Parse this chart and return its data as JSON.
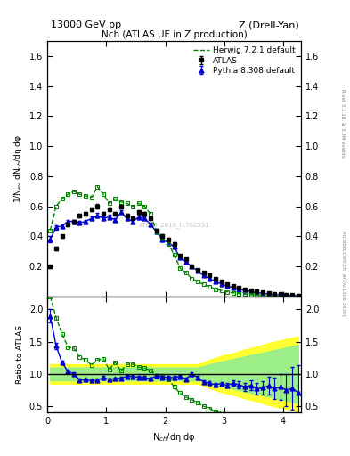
{
  "title_top_left": "13000 GeV pp",
  "title_top_right": "Z (Drell-Yan)",
  "plot_title": "Nch (ATLAS UE in Z production)",
  "ylabel_main": "1/N$_{ev}$ dN$_{ch}$/dη dφ",
  "ylabel_ratio": "Ratio to ATLAS",
  "xlabel": "N$_{ch}$/dη dφ",
  "right_label_top": "Rivet 3.1.10, ≥ 3.3M events",
  "right_label_bottom": "mcplots.cern.ch [arXiv:1306.3436]",
  "watermark": "ATLAS_2019_I1762531",
  "atlas_x": [
    0.05,
    0.15,
    0.25,
    0.35,
    0.45,
    0.55,
    0.65,
    0.75,
    0.85,
    0.95,
    1.05,
    1.15,
    1.25,
    1.35,
    1.45,
    1.55,
    1.65,
    1.75,
    1.85,
    1.95,
    2.05,
    2.15,
    2.25,
    2.35,
    2.45,
    2.55,
    2.65,
    2.75,
    2.85,
    2.95,
    3.05,
    3.15,
    3.25,
    3.35,
    3.45,
    3.55,
    3.65,
    3.75,
    3.85,
    3.95,
    4.05,
    4.15,
    4.25
  ],
  "atlas_y": [
    0.2,
    0.32,
    0.4,
    0.48,
    0.5,
    0.54,
    0.55,
    0.58,
    0.6,
    0.55,
    0.58,
    0.55,
    0.6,
    0.54,
    0.52,
    0.56,
    0.55,
    0.52,
    0.44,
    0.4,
    0.38,
    0.35,
    0.27,
    0.25,
    0.2,
    0.18,
    0.16,
    0.14,
    0.12,
    0.1,
    0.085,
    0.07,
    0.06,
    0.05,
    0.04,
    0.035,
    0.028,
    0.022,
    0.018,
    0.015,
    0.012,
    0.009,
    0.007
  ],
  "atlas_yerr": [
    0.01,
    0.01,
    0.01,
    0.01,
    0.01,
    0.01,
    0.01,
    0.01,
    0.015,
    0.012,
    0.012,
    0.012,
    0.012,
    0.012,
    0.012,
    0.012,
    0.012,
    0.012,
    0.012,
    0.012,
    0.012,
    0.01,
    0.008,
    0.007,
    0.006,
    0.005,
    0.004,
    0.004,
    0.003,
    0.003,
    0.002,
    0.002,
    0.0015,
    0.0012,
    0.001,
    0.0009,
    0.0007,
    0.0006,
    0.0005,
    0.0004,
    0.0003,
    0.00025,
    0.0002
  ],
  "herwig_x": [
    0.05,
    0.15,
    0.25,
    0.35,
    0.45,
    0.55,
    0.65,
    0.75,
    0.85,
    0.95,
    1.05,
    1.15,
    1.25,
    1.35,
    1.45,
    1.55,
    1.65,
    1.75,
    1.85,
    1.95,
    2.05,
    2.15,
    2.25,
    2.35,
    2.45,
    2.55,
    2.65,
    2.75,
    2.85,
    2.95,
    3.05,
    3.15,
    3.25,
    3.35,
    3.45,
    3.55,
    3.65,
    3.75,
    3.85,
    3.95,
    4.05,
    4.15,
    4.25
  ],
  "herwig_y": [
    0.44,
    0.6,
    0.65,
    0.68,
    0.7,
    0.68,
    0.67,
    0.66,
    0.73,
    0.68,
    0.62,
    0.65,
    0.63,
    0.62,
    0.6,
    0.62,
    0.6,
    0.55,
    0.43,
    0.39,
    0.35,
    0.28,
    0.19,
    0.16,
    0.12,
    0.1,
    0.08,
    0.065,
    0.05,
    0.04,
    0.032,
    0.025,
    0.02,
    0.015,
    0.012,
    0.009,
    0.007,
    0.005,
    0.004,
    0.003,
    0.002,
    0.0015,
    0.001
  ],
  "pythia_x": [
    0.05,
    0.15,
    0.25,
    0.35,
    0.45,
    0.55,
    0.65,
    0.75,
    0.85,
    0.95,
    1.05,
    1.15,
    1.25,
    1.35,
    1.45,
    1.55,
    1.65,
    1.75,
    1.85,
    1.95,
    2.05,
    2.15,
    2.25,
    2.35,
    2.45,
    2.55,
    2.65,
    2.75,
    2.85,
    2.95,
    3.05,
    3.15,
    3.25,
    3.35,
    3.45,
    3.55,
    3.65,
    3.75,
    3.85,
    3.95,
    4.05,
    4.15,
    4.25
  ],
  "pythia_y": [
    0.38,
    0.46,
    0.47,
    0.5,
    0.5,
    0.49,
    0.5,
    0.52,
    0.54,
    0.52,
    0.53,
    0.51,
    0.56,
    0.52,
    0.5,
    0.53,
    0.52,
    0.48,
    0.43,
    0.38,
    0.36,
    0.33,
    0.26,
    0.23,
    0.2,
    0.17,
    0.14,
    0.12,
    0.1,
    0.085,
    0.07,
    0.06,
    0.05,
    0.04,
    0.033,
    0.027,
    0.022,
    0.018,
    0.014,
    0.012,
    0.009,
    0.007,
    0.005
  ],
  "pythia_yerr": [
    0.02,
    0.015,
    0.012,
    0.012,
    0.012,
    0.012,
    0.012,
    0.012,
    0.015,
    0.012,
    0.012,
    0.012,
    0.012,
    0.012,
    0.012,
    0.012,
    0.012,
    0.012,
    0.012,
    0.01,
    0.01,
    0.009,
    0.007,
    0.006,
    0.006,
    0.005,
    0.004,
    0.004,
    0.003,
    0.003,
    0.003,
    0.003,
    0.003,
    0.003,
    0.003,
    0.003,
    0.003,
    0.003,
    0.003,
    0.003,
    0.003,
    0.003,
    0.003
  ],
  "atlas_color": "#000000",
  "herwig_color": "#008800",
  "pythia_color": "#0000cc",
  "band_yellow_lo": [
    0.85,
    0.85,
    0.85,
    0.85,
    0.85,
    0.85,
    0.85,
    0.85,
    0.85,
    0.85,
    0.85,
    0.85,
    0.85,
    0.85,
    0.85,
    0.85,
    0.85,
    0.85,
    0.85,
    0.85,
    0.85,
    0.85,
    0.85,
    0.85,
    0.85,
    0.85,
    0.82,
    0.78,
    0.75,
    0.72,
    0.7,
    0.68,
    0.65,
    0.62,
    0.6,
    0.58,
    0.55,
    0.52,
    0.5,
    0.48,
    0.46,
    0.44,
    0.42
  ],
  "band_yellow_hi": [
    1.15,
    1.15,
    1.15,
    1.15,
    1.15,
    1.15,
    1.15,
    1.15,
    1.15,
    1.15,
    1.15,
    1.15,
    1.15,
    1.15,
    1.15,
    1.15,
    1.15,
    1.15,
    1.15,
    1.15,
    1.15,
    1.15,
    1.15,
    1.15,
    1.15,
    1.15,
    1.18,
    1.22,
    1.25,
    1.28,
    1.3,
    1.32,
    1.35,
    1.38,
    1.4,
    1.42,
    1.45,
    1.48,
    1.5,
    1.52,
    1.54,
    1.56,
    1.58
  ],
  "band_green_lo": [
    0.9,
    0.9,
    0.9,
    0.9,
    0.9,
    0.9,
    0.9,
    0.9,
    0.9,
    0.9,
    0.9,
    0.9,
    0.9,
    0.9,
    0.9,
    0.9,
    0.9,
    0.9,
    0.9,
    0.9,
    0.9,
    0.9,
    0.9,
    0.9,
    0.9,
    0.9,
    0.88,
    0.85,
    0.83,
    0.81,
    0.79,
    0.77,
    0.75,
    0.73,
    0.71,
    0.69,
    0.67,
    0.65,
    0.63,
    0.61,
    0.59,
    0.57,
    0.55
  ],
  "band_green_hi": [
    1.1,
    1.1,
    1.1,
    1.1,
    1.1,
    1.1,
    1.1,
    1.1,
    1.1,
    1.1,
    1.1,
    1.1,
    1.1,
    1.1,
    1.1,
    1.1,
    1.1,
    1.1,
    1.1,
    1.1,
    1.1,
    1.1,
    1.1,
    1.1,
    1.1,
    1.1,
    1.12,
    1.15,
    1.17,
    1.19,
    1.21,
    1.23,
    1.25,
    1.27,
    1.29,
    1.31,
    1.33,
    1.35,
    1.37,
    1.39,
    1.41,
    1.43,
    1.45
  ],
  "xlim": [
    0,
    4.3
  ],
  "ylim_main": [
    0,
    1.7
  ],
  "ylim_ratio": [
    0.4,
    2.2
  ],
  "yticks_main": [
    0.2,
    0.4,
    0.6,
    0.8,
    1.0,
    1.2,
    1.4,
    1.6
  ],
  "yticks_ratio": [
    0.5,
    1.0,
    1.5,
    2.0
  ],
  "xticks": [
    0,
    1,
    2,
    3,
    4
  ]
}
